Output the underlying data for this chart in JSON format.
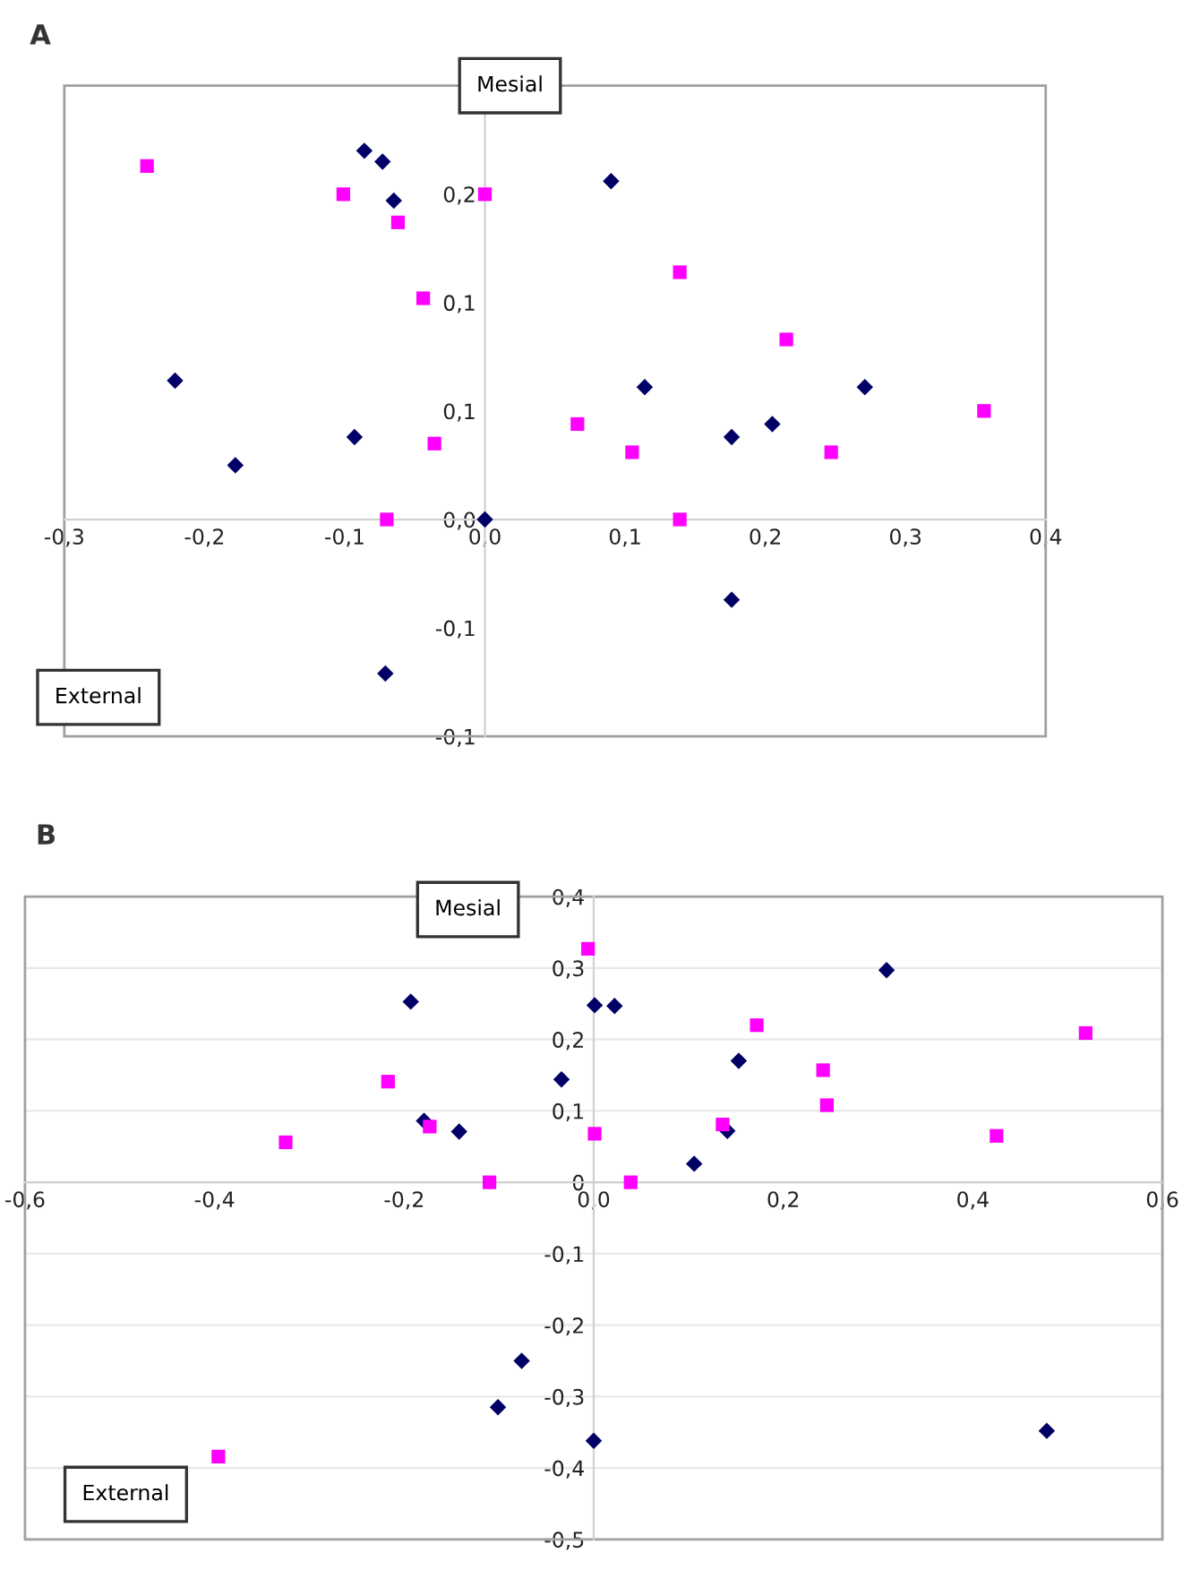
{
  "chart_data": [
    {
      "type": "scatter",
      "title": "A",
      "annotations": [
        "Mesial",
        "External"
      ],
      "xlim": [
        -0.3,
        0.4
      ],
      "ylim": [
        -0.1,
        0.2
      ],
      "grid": false,
      "xticks": [
        {
          "value": -0.3,
          "label": "-0,3"
        },
        {
          "value": -0.2,
          "label": "-0,2"
        },
        {
          "value": -0.1,
          "label": "-0,1"
        },
        {
          "value": 0,
          "label": "0,0"
        },
        {
          "value": 0.1,
          "label": "0,1"
        },
        {
          "value": 0.2,
          "label": "0,2"
        },
        {
          "value": 0.3,
          "label": "0,3"
        },
        {
          "value": 0.4,
          "label": "0,4"
        }
      ],
      "yticks": [
        {
          "value": -0.1,
          "label": "-0,1"
        },
        {
          "value": -0.05,
          "label": "-0,1"
        },
        {
          "value": 0,
          "label": "0,0"
        },
        {
          "value": 0.05,
          "label": "0,1"
        },
        {
          "value": 0.1,
          "label": "0,1"
        },
        {
          "value": 0.15,
          "label": "0,2"
        }
      ],
      "series": [
        {
          "color": "#000066",
          "marker": "diamond",
          "x": [
            -0.086,
            -0.073,
            -0.065,
            0.09,
            -0.221,
            0.114,
            0.271,
            -0.093,
            -0.178,
            0.0,
            0.176,
            0.205,
            0.176,
            -0.071
          ],
          "values": [
            0.17,
            0.165,
            0.147,
            0.156,
            0.064,
            0.061,
            0.061,
            0.038,
            0.025,
            0.0,
            0.038,
            0.044,
            -0.037,
            -0.071
          ]
        },
        {
          "color": "#ff00ff",
          "marker": "square",
          "x": [
            -0.241,
            -0.101,
            0.0,
            -0.062,
            -0.044,
            0.139,
            0.215,
            0.356,
            0.066,
            -0.036,
            0.105,
            0.247,
            -0.07,
            0.139
          ],
          "values": [
            0.163,
            0.15,
            0.15,
            0.137,
            0.102,
            0.114,
            0.083,
            0.05,
            0.044,
            0.035,
            0.031,
            0.031,
            0.0,
            0.0
          ]
        }
      ]
    },
    {
      "type": "scatter",
      "title": "B",
      "annotations": [
        "Mesial",
        "External"
      ],
      "xlim": [
        -0.6,
        0.6
      ],
      "ylim": [
        -0.5,
        0.4
      ],
      "grid": "y",
      "xticks": [
        {
          "value": -0.6,
          "label": "-0,6"
        },
        {
          "value": -0.4,
          "label": "-0,4"
        },
        {
          "value": -0.2,
          "label": "-0,2"
        },
        {
          "value": 0,
          "label": "0,0"
        },
        {
          "value": 0.2,
          "label": "0,2"
        },
        {
          "value": 0.4,
          "label": "0,4"
        },
        {
          "value": 0.6,
          "label": "0,6"
        }
      ],
      "yticks": [
        {
          "value": -0.5,
          "label": "-0,5"
        },
        {
          "value": -0.4,
          "label": "-0,4"
        },
        {
          "value": -0.3,
          "label": "-0,3"
        },
        {
          "value": -0.2,
          "label": "-0,2"
        },
        {
          "value": -0.1,
          "label": "-0,1"
        },
        0,
        {
          "value": 0.1,
          "label": "0,1"
        },
        {
          "value": 0.2,
          "label": "0,2"
        },
        {
          "value": 0.3,
          "label": "0,3"
        },
        {
          "value": 0.4,
          "label": "0,4"
        }
      ],
      "series": [
        {
          "color": "#000066",
          "marker": "diamond",
          "x": [
            -0.193,
            0.001,
            0.022,
            0.309,
            -0.034,
            0.153,
            -0.179,
            -0.142,
            0.141,
            0.106,
            -0.076,
            -0.101,
            0.0,
            0.478
          ],
          "values": [
            0.253,
            0.248,
            0.247,
            0.297,
            0.144,
            0.17,
            0.086,
            0.071,
            0.072,
            0.026,
            -0.25,
            -0.315,
            -0.362,
            -0.348
          ]
        },
        {
          "color": "#ff00ff",
          "marker": "square",
          "x": [
            -0.006,
            0.172,
            0.519,
            -0.217,
            0.242,
            0.246,
            -0.325,
            -0.173,
            0.001,
            0.136,
            0.425,
            -0.11,
            0.039,
            -0.396
          ],
          "values": [
            0.327,
            0.22,
            0.209,
            0.141,
            0.157,
            0.108,
            0.056,
            0.078,
            0.068,
            0.081,
            0.065,
            0.0,
            0.0,
            -0.384
          ]
        }
      ]
    }
  ]
}
